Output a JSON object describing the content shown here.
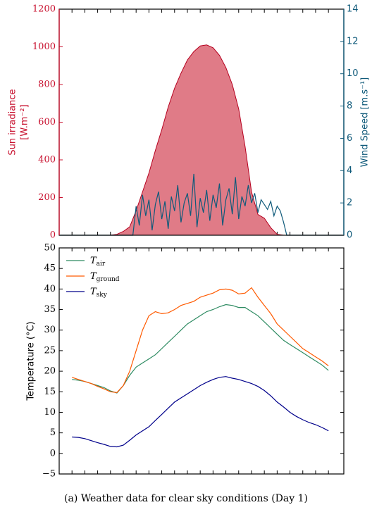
{
  "chart_data": [
    {
      "type": "area",
      "x": [
        -1,
        -0.5,
        0,
        0.5,
        1,
        1.5,
        2,
        2.5,
        3,
        3.5,
        4,
        4.5,
        5,
        5.5,
        6,
        6.5,
        7,
        7.5,
        8,
        8.5,
        9,
        9.5,
        10,
        10.5,
        11,
        11.5,
        12,
        12.5,
        13,
        13.5,
        14,
        14.5,
        15,
        15.5,
        16,
        16.5,
        17,
        17.5,
        18,
        18.5,
        19,
        19.5,
        20,
        20.5,
        21
      ],
      "xlim": [
        -1,
        21.2
      ],
      "xticks": [
        0,
        1,
        2,
        3,
        4,
        5,
        6,
        7,
        8,
        9,
        10,
        11,
        12,
        13,
        14,
        15,
        16,
        17,
        18,
        19,
        20
      ],
      "ylabel": [
        "Sun irradiance",
        "[W.m⁻²]"
      ],
      "y2label": "Wind Speed [m.s⁻¹]",
      "ylim": [
        0,
        1200
      ],
      "yticks": [
        0,
        200,
        400,
        600,
        800,
        1000,
        1200
      ],
      "y2lim": [
        0,
        14
      ],
      "y2ticks": [
        0,
        2,
        4,
        6,
        8,
        10,
        12,
        14
      ],
      "ycolor": "#c8102e",
      "y2color": "#0f5a7a",
      "series": [
        {
          "type": "area",
          "color": "#e07b87",
          "edge": "#b5001f",
          "values": [
            0,
            0,
            0,
            0,
            0,
            0,
            0,
            0,
            0,
            5,
            20,
            45,
            130,
            230,
            330,
            450,
            560,
            680,
            780,
            860,
            930,
            975,
            1005,
            1010,
            995,
            955,
            890,
            800,
            670,
            470,
            230,
            110,
            90,
            40,
            5,
            0,
            0,
            0,
            0,
            0,
            0,
            0,
            0,
            0,
            0
          ]
        },
        {
          "type": "line",
          "axis": "y2",
          "color": "#0f5a7a",
          "x": [
            -1,
            4.75,
            5,
            5.25,
            5.5,
            5.75,
            6,
            6.25,
            6.5,
            6.75,
            7,
            7.25,
            7.5,
            7.75,
            8,
            8.25,
            8.5,
            8.75,
            9,
            9.25,
            9.5,
            9.75,
            10,
            10.25,
            10.5,
            10.75,
            11,
            11.25,
            11.5,
            11.75,
            12,
            12.25,
            12.5,
            12.75,
            13,
            13.25,
            13.5,
            13.75,
            14,
            14.25,
            14.5,
            14.75,
            15,
            15.25,
            15.5,
            15.75,
            16,
            16.25,
            16.5,
            16.75,
            21.2
          ],
          "values": [
            0,
            0,
            1.8,
            0.6,
            2.5,
            1.2,
            2.2,
            0.3,
            1.9,
            2.7,
            1.0,
            2.1,
            0.4,
            2.4,
            1.5,
            3.1,
            0.8,
            2.0,
            2.6,
            1.2,
            3.8,
            0.5,
            2.3,
            1.4,
            2.8,
            0.9,
            2.5,
            1.7,
            3.2,
            0.6,
            2.2,
            2.9,
            1.3,
            3.6,
            1.0,
            2.4,
            1.8,
            3.1,
            2.0,
            2.6,
            1.4,
            2.2,
            1.9,
            1.6,
            2.1,
            1.2,
            1.8,
            1.5,
            0.8,
            0,
            0
          ]
        }
      ]
    },
    {
      "type": "line",
      "x": [
        0,
        0.5,
        1,
        1.5,
        2,
        2.5,
        3,
        3.5,
        4,
        4.5,
        5,
        5.5,
        6,
        6.5,
        7,
        7.5,
        8,
        8.5,
        9,
        9.5,
        10,
        10.5,
        11,
        11.5,
        12,
        12.5,
        13,
        13.5,
        14,
        14.5,
        15,
        15.5,
        16,
        16.5,
        17,
        17.5,
        18,
        18.5,
        19,
        19.5,
        20
      ],
      "xlim": [
        -1,
        21.2
      ],
      "xticks": [
        0,
        1,
        2,
        3,
        4,
        5,
        6,
        7,
        8,
        9,
        10,
        11,
        12,
        13,
        14,
        15,
        16,
        17,
        18,
        19,
        20
      ],
      "ylabel": "Temperature (°C)",
      "ylim": [
        -5,
        50
      ],
      "yticks": [
        {
          "value": -5,
          "label": "−5"
        },
        0,
        5,
        10,
        15,
        20,
        25,
        30,
        35,
        40,
        45,
        50
      ],
      "legend": "upper left",
      "series": [
        {
          "name": "Tair",
          "color": "#2e8b62",
          "values": [
            18,
            17.8,
            17.5,
            17,
            16.5,
            16,
            15.2,
            14.7,
            16.5,
            19,
            21,
            22,
            23,
            24,
            25.5,
            27,
            28.5,
            30,
            31.5,
            32.5,
            33.5,
            34.5,
            35,
            35.7,
            36.2,
            36,
            35.5,
            35.5,
            34.5,
            33.5,
            32,
            30.5,
            29,
            27.5,
            26.5,
            25.5,
            24.5,
            23.5,
            22.5,
            21.5,
            20.2
          ]
        },
        {
          "name": "Tground",
          "color": "#ff5a00",
          "values": [
            18.5,
            18,
            17.5,
            17,
            16.3,
            15.7,
            15,
            14.8,
            16.5,
            20,
            25,
            30,
            33.5,
            34.5,
            34,
            34.2,
            35,
            36,
            36.5,
            37,
            38,
            38.5,
            39,
            39.8,
            40,
            39.7,
            38.8,
            39,
            40.3,
            38,
            36,
            34,
            31.5,
            30,
            28.5,
            27,
            25.5,
            24.5,
            23.5,
            22.5,
            21.3
          ]
        },
        {
          "name": "Tsky",
          "color": "#00008b",
          "values": [
            4,
            3.9,
            3.6,
            3.1,
            2.6,
            2.2,
            1.7,
            1.6,
            2,
            3.2,
            4.5,
            5.5,
            6.5,
            8,
            9.5,
            11,
            12.5,
            13.5,
            14.5,
            15.5,
            16.5,
            17.3,
            18,
            18.5,
            18.7,
            18.3,
            18,
            17.5,
            17,
            16.3,
            15.3,
            14,
            12.5,
            11.3,
            10,
            9,
            8.2,
            7.5,
            7,
            6.3,
            5.5
          ]
        }
      ]
    }
  ],
  "caption": "(a) Weather data for clear sky conditions (Day 1)"
}
